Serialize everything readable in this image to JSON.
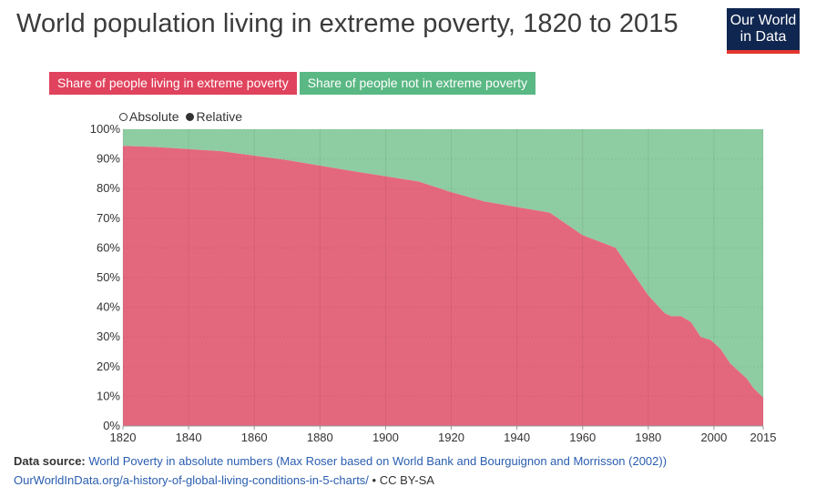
{
  "title": "World population living in extreme poverty, 1820 to 2015",
  "logo": {
    "line1": "Our World",
    "line2": "in Data"
  },
  "legend_tabs": [
    {
      "label": "Share of people living in extreme poverty",
      "color": "#e0435d"
    },
    {
      "label": "Share of people not in extreme poverty",
      "color": "#5ab884"
    }
  ],
  "toggle": {
    "absolute": "Absolute",
    "relative": "Relative",
    "selected": "Relative"
  },
  "footer": {
    "source_label": "Data source:",
    "source_text": "World Poverty in absolute numbers (Max Roser based on World Bank and Bourguignon and Morrisson (2002))",
    "url": "OurWorldInData.org/a-history-of-global-living-conditions-in-5-charts/",
    "separator": "•",
    "license": "CC BY-SA"
  },
  "chart_data": {
    "type": "area",
    "stacked": true,
    "x": [
      1820,
      1830,
      1850,
      1870,
      1890,
      1910,
      1920,
      1930,
      1950,
      1960,
      1970,
      1980,
      1985,
      1987,
      1990,
      1993,
      1996,
      1999,
      2002,
      2005,
      2008,
      2010,
      2012,
      2015
    ],
    "series": [
      {
        "name": "Share of people living in extreme poverty",
        "color": "#e4687d",
        "values": [
          94.4,
          94.0,
          92.6,
          89.6,
          85.9,
          82.4,
          78.8,
          75.7,
          71.9,
          64.3,
          60.1,
          44.0,
          38.0,
          37.0,
          37.0,
          35.0,
          30.0,
          29.0,
          26.0,
          21.0,
          18.0,
          16.0,
          12.8,
          9.6
        ]
      },
      {
        "name": "Share of people not in extreme poverty",
        "color": "#8ecda1",
        "values": [
          5.6,
          6.0,
          7.4,
          10.4,
          14.1,
          17.6,
          21.2,
          24.3,
          28.1,
          35.7,
          39.9,
          56.0,
          62.0,
          63.0,
          63.0,
          65.0,
          70.0,
          71.0,
          74.0,
          79.0,
          82.0,
          84.0,
          87.2,
          90.4
        ]
      }
    ],
    "xticks": [
      1820,
      1840,
      1860,
      1880,
      1900,
      1920,
      1940,
      1960,
      1980,
      2000,
      2015
    ],
    "yticks": [
      "0%",
      "10%",
      "20%",
      "30%",
      "40%",
      "50%",
      "60%",
      "70%",
      "80%",
      "90%",
      "100%"
    ],
    "xlim": [
      1820,
      2015
    ],
    "ylim": [
      0,
      100
    ],
    "grid": true
  }
}
